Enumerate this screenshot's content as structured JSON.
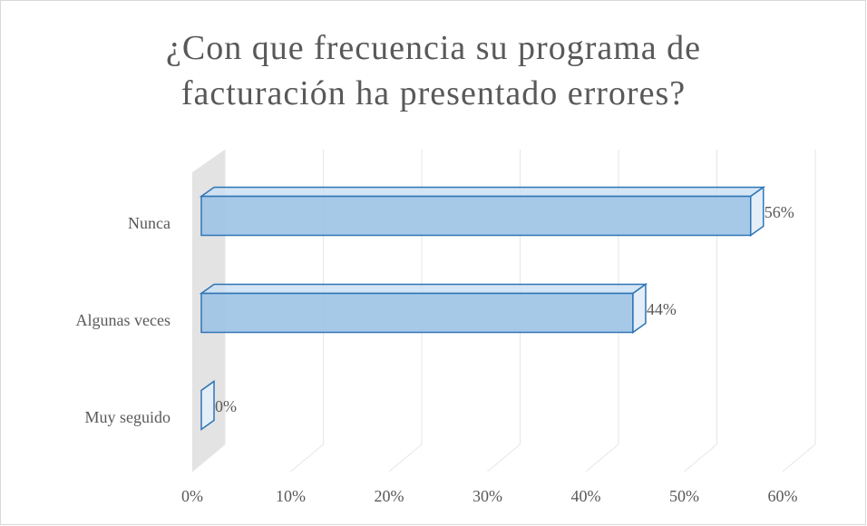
{
  "chart_data": {
    "type": "bar3d",
    "orientation": "horizontal",
    "title": "¿Con que frecuencia su programa de facturación ha presentado errores?",
    "categories": [
      "Nunca",
      "Algunas veces",
      "Muy seguido"
    ],
    "values": [
      56,
      44,
      0
    ],
    "value_labels": [
      "56%",
      "44%",
      "0%"
    ],
    "color": "#9dc3e6",
    "xlim": [
      0,
      60
    ],
    "xticks": [
      {
        "value": 0,
        "label": "0%"
      },
      {
        "value": 10,
        "label": "10%"
      },
      {
        "value": 20,
        "label": "20%"
      },
      {
        "value": 30,
        "label": "30%"
      },
      {
        "value": 40,
        "label": "40%"
      },
      {
        "value": 50,
        "label": "50%"
      },
      {
        "value": 60,
        "label": "60%"
      }
    ],
    "grid": true
  }
}
